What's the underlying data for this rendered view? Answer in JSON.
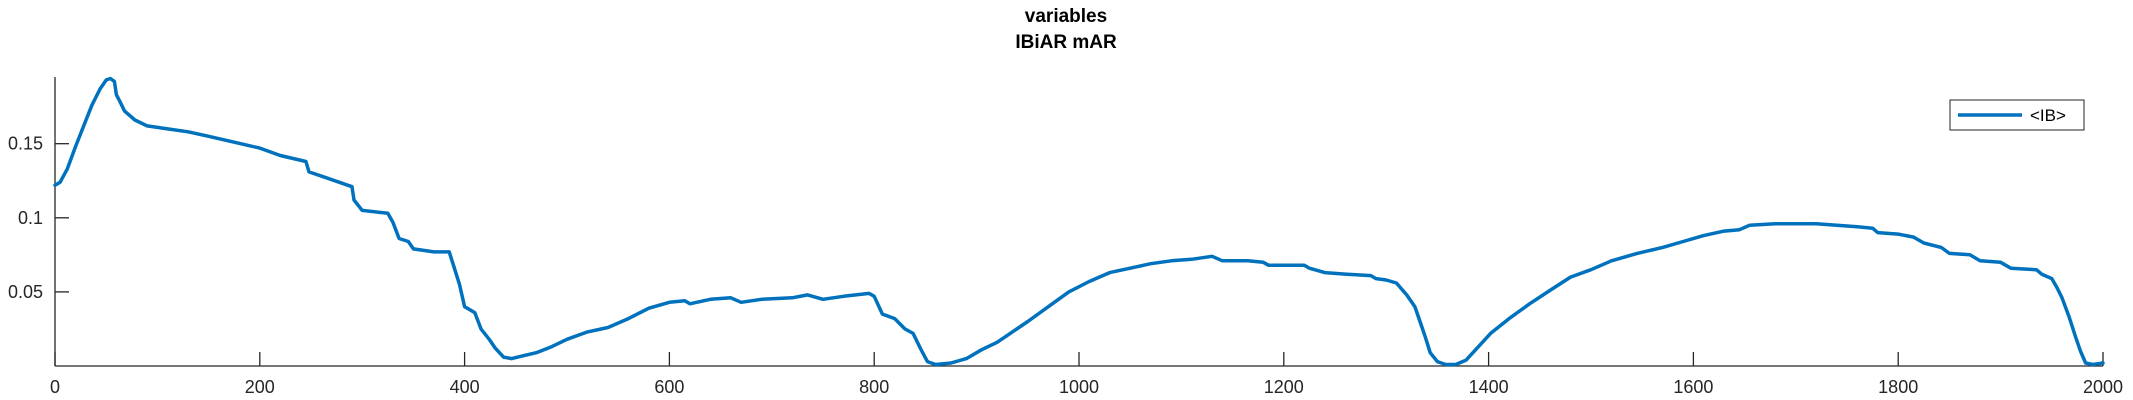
{
  "chart_data": {
    "type": "line",
    "title": "variables",
    "subtitle": "IBiAR mAR",
    "xlabel": "",
    "ylabel": "",
    "xlim": [
      0,
      2000
    ],
    "ylim": [
      0,
      0.195
    ],
    "xticks": [
      0,
      200,
      400,
      600,
      800,
      1000,
      1200,
      1400,
      1600,
      1800,
      2000
    ],
    "xtick_labels": [
      "0",
      "200",
      "400",
      "600",
      "800",
      "1000",
      "1200",
      "1400",
      "1600",
      "1800",
      "2000"
    ],
    "yticks": [
      0.05,
      0.1,
      0.15
    ],
    "ytick_labels": [
      "0.05",
      "0.1",
      "0.15"
    ],
    "grid": false,
    "legend_position": "top-right",
    "series": [
      {
        "name": "<IB>",
        "color": "#0072BD",
        "points": [
          [
            0,
            0.122
          ],
          [
            5,
            0.124
          ],
          [
            12,
            0.133
          ],
          [
            20,
            0.148
          ],
          [
            28,
            0.162
          ],
          [
            36,
            0.176
          ],
          [
            44,
            0.187
          ],
          [
            50,
            0.193
          ],
          [
            54,
            0.194
          ],
          [
            58,
            0.192
          ],
          [
            60,
            0.183
          ],
          [
            63,
            0.179
          ],
          [
            68,
            0.172
          ],
          [
            78,
            0.166
          ],
          [
            90,
            0.162
          ],
          [
            110,
            0.16
          ],
          [
            130,
            0.158
          ],
          [
            150,
            0.155
          ],
          [
            175,
            0.151
          ],
          [
            200,
            0.147
          ],
          [
            220,
            0.142
          ],
          [
            245,
            0.138
          ],
          [
            248,
            0.131
          ],
          [
            265,
            0.127
          ],
          [
            290,
            0.121
          ],
          [
            292,
            0.112
          ],
          [
            300,
            0.105
          ],
          [
            325,
            0.103
          ],
          [
            330,
            0.097
          ],
          [
            336,
            0.086
          ],
          [
            345,
            0.084
          ],
          [
            350,
            0.079
          ],
          [
            370,
            0.077
          ],
          [
            385,
            0.077
          ],
          [
            390,
            0.066
          ],
          [
            395,
            0.055
          ],
          [
            400,
            0.04
          ],
          [
            410,
            0.036
          ],
          [
            416,
            0.025
          ],
          [
            424,
            0.018
          ],
          [
            430,
            0.012
          ],
          [
            438,
            0.006
          ],
          [
            446,
            0.005
          ],
          [
            458,
            0.007
          ],
          [
            470,
            0.009
          ],
          [
            485,
            0.013
          ],
          [
            500,
            0.018
          ],
          [
            520,
            0.023
          ],
          [
            540,
            0.026
          ],
          [
            560,
            0.032
          ],
          [
            580,
            0.039
          ],
          [
            600,
            0.043
          ],
          [
            615,
            0.044
          ],
          [
            620,
            0.042
          ],
          [
            640,
            0.045
          ],
          [
            660,
            0.046
          ],
          [
            670,
            0.043
          ],
          [
            690,
            0.045
          ],
          [
            720,
            0.046
          ],
          [
            735,
            0.048
          ],
          [
            750,
            0.045
          ],
          [
            770,
            0.047
          ],
          [
            795,
            0.049
          ],
          [
            800,
            0.047
          ],
          [
            808,
            0.035
          ],
          [
            820,
            0.032
          ],
          [
            830,
            0.025
          ],
          [
            838,
            0.022
          ],
          [
            845,
            0.012
          ],
          [
            852,
            0.003
          ],
          [
            860,
            0.001
          ],
          [
            875,
            0.002
          ],
          [
            890,
            0.005
          ],
          [
            905,
            0.011
          ],
          [
            920,
            0.016
          ],
          [
            935,
            0.023
          ],
          [
            950,
            0.03
          ],
          [
            970,
            0.04
          ],
          [
            990,
            0.05
          ],
          [
            1010,
            0.057
          ],
          [
            1030,
            0.063
          ],
          [
            1050,
            0.066
          ],
          [
            1070,
            0.069
          ],
          [
            1090,
            0.071
          ],
          [
            1110,
            0.072
          ],
          [
            1130,
            0.074
          ],
          [
            1140,
            0.071
          ],
          [
            1165,
            0.071
          ],
          [
            1180,
            0.07
          ],
          [
            1185,
            0.068
          ],
          [
            1200,
            0.068
          ],
          [
            1220,
            0.068
          ],
          [
            1225,
            0.066
          ],
          [
            1240,
            0.063
          ],
          [
            1260,
            0.062
          ],
          [
            1285,
            0.061
          ],
          [
            1290,
            0.059
          ],
          [
            1300,
            0.058
          ],
          [
            1310,
            0.056
          ],
          [
            1320,
            0.048
          ],
          [
            1328,
            0.04
          ],
          [
            1333,
            0.03
          ],
          [
            1338,
            0.02
          ],
          [
            1343,
            0.009
          ],
          [
            1350,
            0.003
          ],
          [
            1358,
            0.001
          ],
          [
            1368,
            0.001
          ],
          [
            1378,
            0.004
          ],
          [
            1390,
            0.013
          ],
          [
            1402,
            0.022
          ],
          [
            1420,
            0.032
          ],
          [
            1440,
            0.042
          ],
          [
            1460,
            0.051
          ],
          [
            1480,
            0.06
          ],
          [
            1500,
            0.065
          ],
          [
            1520,
            0.071
          ],
          [
            1545,
            0.076
          ],
          [
            1570,
            0.08
          ],
          [
            1590,
            0.084
          ],
          [
            1610,
            0.088
          ],
          [
            1630,
            0.091
          ],
          [
            1645,
            0.092
          ],
          [
            1655,
            0.095
          ],
          [
            1680,
            0.096
          ],
          [
            1700,
            0.096
          ],
          [
            1720,
            0.096
          ],
          [
            1760,
            0.094
          ],
          [
            1775,
            0.093
          ],
          [
            1780,
            0.09
          ],
          [
            1800,
            0.089
          ],
          [
            1815,
            0.087
          ],
          [
            1825,
            0.083
          ],
          [
            1842,
            0.08
          ],
          [
            1850,
            0.076
          ],
          [
            1870,
            0.075
          ],
          [
            1880,
            0.071
          ],
          [
            1900,
            0.07
          ],
          [
            1910,
            0.066
          ],
          [
            1935,
            0.065
          ],
          [
            1940,
            0.062
          ],
          [
            1950,
            0.059
          ],
          [
            1955,
            0.053
          ],
          [
            1960,
            0.046
          ],
          [
            1967,
            0.033
          ],
          [
            1973,
            0.02
          ],
          [
            1978,
            0.01
          ],
          [
            1983,
            0.002
          ],
          [
            1990,
            0.001
          ],
          [
            2000,
            0.002
          ]
        ]
      }
    ]
  }
}
